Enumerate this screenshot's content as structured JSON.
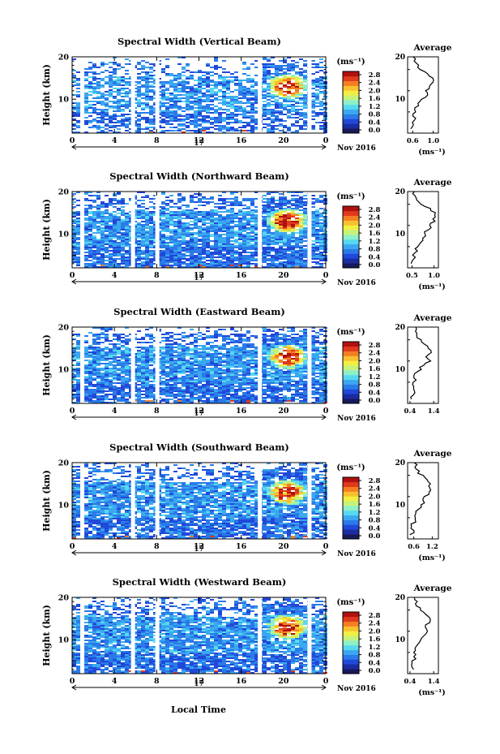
{
  "figure": {
    "x_axis_label": "Local Time",
    "date_label": "Nov 2016",
    "day_label": "17",
    "y_axis_label": "Height (km)",
    "unit_label": "(ms⁻¹)",
    "avg_title": "Average"
  },
  "colorbar": {
    "ticks": [
      "2.8",
      "2.4",
      "2.0",
      "1.6",
      "1.2",
      "0.8",
      "0.4",
      "0.0"
    ],
    "colors": [
      "#18185a",
      "#1a2ca0",
      "#2148d8",
      "#2a7ae8",
      "#3aa8f0",
      "#58d8f0",
      "#8ef0c8",
      "#c6f27c",
      "#f2ee44",
      "#f8c030",
      "#f47e22",
      "#e03a1c",
      "#b01010"
    ]
  },
  "chart_data": [
    {
      "type": "heatmap",
      "title": "Spectral Width (Vertical Beam)",
      "xlabel": "Local Time",
      "ylabel": "Height (km)",
      "x_ticks": [
        "0",
        "4",
        "8",
        "12",
        "16",
        "20",
        "0"
      ],
      "y_ticks": [
        "20",
        "10"
      ],
      "xlim": [
        0,
        24
      ],
      "ylim": [
        2,
        20
      ],
      "colorbar": {
        "label": "(ms⁻¹)",
        "range": [
          0.0,
          2.8
        ]
      },
      "gaps_hours": [
        1.0,
        5.8,
        8.1,
        17.8,
        22.5
      ],
      "average_profile": {
        "title": "Average",
        "xlabel": "(ms⁻¹)",
        "x_ticks": [
          "0.6",
          "1.0"
        ],
        "xlim": [
          0.5,
          1.1
        ],
        "ylim": [
          2,
          20
        ],
        "height_km": [
          3,
          4,
          5,
          6,
          7,
          8,
          9,
          10,
          11,
          12,
          13,
          14,
          15,
          16,
          17,
          18,
          19,
          20
        ],
        "values": [
          0.58,
          0.62,
          0.6,
          0.63,
          0.66,
          0.64,
          0.7,
          0.76,
          0.88,
          0.84,
          0.92,
          0.96,
          1.02,
          0.9,
          0.78,
          0.68,
          0.64,
          0.62
        ]
      }
    },
    {
      "type": "heatmap",
      "title": "Spectral Width (Northward Beam)",
      "xlabel": "Local Time",
      "ylabel": "Height (km)",
      "x_ticks": [
        "0",
        "4",
        "8",
        "12",
        "16",
        "20",
        "0"
      ],
      "y_ticks": [
        "20",
        "10"
      ],
      "xlim": [
        0,
        24
      ],
      "ylim": [
        2,
        20
      ],
      "colorbar": {
        "label": "(ms⁻¹)",
        "range": [
          0.0,
          2.8
        ]
      },
      "gaps_hours": [
        1.0,
        5.8,
        8.1,
        17.8,
        22.5
      ],
      "average_profile": {
        "title": "Average",
        "xlabel": "(ms⁻¹)",
        "x_ticks": [
          "0.5",
          "1.0"
        ],
        "xlim": [
          0.4,
          1.1
        ],
        "ylim": [
          2,
          20
        ],
        "height_km": [
          3,
          4,
          5,
          6,
          7,
          8,
          9,
          10,
          11,
          12,
          13,
          14,
          15,
          16,
          17,
          18,
          19,
          20
        ],
        "values": [
          0.5,
          0.56,
          0.52,
          0.6,
          0.64,
          0.68,
          0.74,
          0.8,
          0.86,
          0.92,
          0.98,
          1.02,
          1.0,
          0.88,
          0.72,
          0.62,
          0.56,
          0.52
        ]
      }
    },
    {
      "type": "heatmap",
      "title": "Spectral Width (Eastward Beam)",
      "xlabel": "Local Time",
      "ylabel": "Height (km)",
      "x_ticks": [
        "0",
        "4",
        "8",
        "12",
        "16",
        "20",
        "0"
      ],
      "y_ticks": [
        "20",
        "10"
      ],
      "xlim": [
        0,
        24
      ],
      "ylim": [
        2,
        20
      ],
      "colorbar": {
        "label": "(ms⁻¹)",
        "range": [
          0.0,
          2.8
        ]
      },
      "gaps_hours": [
        1.0,
        5.8,
        8.1,
        17.8,
        22.5
      ],
      "average_profile": {
        "title": "Average",
        "xlabel": "",
        "x_ticks": [
          "0.4",
          "1.4"
        ],
        "xlim": [
          0.3,
          1.6
        ],
        "ylim": [
          2,
          20
        ],
        "height_km": [
          3,
          4,
          5,
          6,
          7,
          8,
          9,
          10,
          11,
          12,
          13,
          14,
          15,
          16,
          17,
          18,
          19,
          20
        ],
        "values": [
          0.5,
          0.48,
          0.55,
          0.52,
          0.6,
          0.58,
          0.66,
          0.8,
          1.0,
          1.22,
          1.1,
          1.25,
          1.18,
          1.02,
          0.86,
          0.7,
          0.62,
          0.58
        ]
      }
    },
    {
      "type": "heatmap",
      "title": "Spectral Width (Southward Beam)",
      "xlabel": "Local Time",
      "ylabel": "Height (km)",
      "x_ticks": [
        "0",
        "4",
        "8",
        "12",
        "16",
        "20",
        "0"
      ],
      "y_ticks": [
        "20",
        "10"
      ],
      "xlim": [
        0,
        24
      ],
      "ylim": [
        2,
        20
      ],
      "colorbar": {
        "label": "(ms⁻¹)",
        "range": [
          0.0,
          2.8
        ]
      },
      "gaps_hours": [
        1.0,
        5.8,
        8.1,
        17.8,
        22.5
      ],
      "average_profile": {
        "title": "Average",
        "xlabel": "(ms⁻¹)",
        "x_ticks": [
          "0.6",
          "1.2"
        ],
        "xlim": [
          0.4,
          1.4
        ],
        "ylim": [
          2,
          20
        ],
        "height_km": [
          3,
          4,
          5,
          6,
          7,
          8,
          9,
          10,
          11,
          12,
          13,
          14,
          15,
          16,
          17,
          18,
          19,
          20
        ],
        "values": [
          0.5,
          0.58,
          0.52,
          0.62,
          0.66,
          0.7,
          0.76,
          0.84,
          0.92,
          1.0,
          1.08,
          1.12,
          1.16,
          1.02,
          0.86,
          0.74,
          0.66,
          0.6
        ]
      }
    },
    {
      "type": "heatmap",
      "title": "Spectral Width (Westward Beam)",
      "xlabel": "Local Time",
      "ylabel": "Height (km)",
      "x_ticks": [
        "0",
        "4",
        "8",
        "12",
        "16",
        "20",
        "0"
      ],
      "y_ticks": [
        "20",
        "10"
      ],
      "xlim": [
        0,
        24
      ],
      "ylim": [
        2,
        20
      ],
      "colorbar": {
        "label": "(ms⁻¹)",
        "range": [
          0.0,
          2.8
        ]
      },
      "gaps_hours": [
        1.0,
        5.8,
        8.1,
        17.8,
        22.5
      ],
      "average_profile": {
        "title": "Average",
        "xlabel": "(ms⁻¹)",
        "x_ticks": [
          "0.4",
          "1.4"
        ],
        "xlim": [
          0.3,
          1.6
        ],
        "ylim": [
          2,
          20
        ],
        "height_km": [
          3,
          4,
          5,
          6,
          7,
          8,
          9,
          10,
          11,
          12,
          13,
          14,
          15,
          16,
          17,
          18,
          19,
          20
        ],
        "values": [
          0.52,
          0.5,
          0.56,
          0.54,
          0.6,
          0.62,
          0.68,
          0.78,
          0.94,
          1.14,
          1.06,
          1.2,
          1.26,
          1.04,
          0.9,
          0.74,
          0.66,
          0.6
        ]
      }
    }
  ]
}
